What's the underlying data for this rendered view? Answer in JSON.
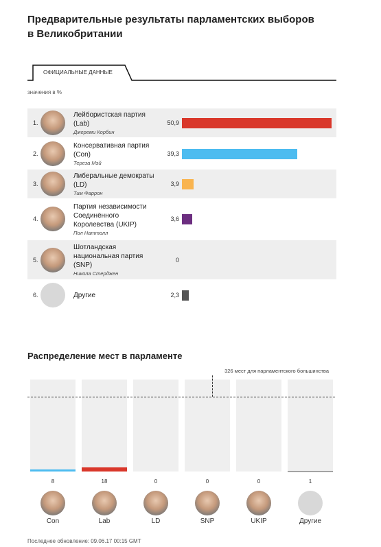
{
  "title": "Предварительные результаты парламентских выборов в Великобритании",
  "tab": "ОФИЦИАЛЬНЫЕ ДАННЫЕ",
  "footer": "Последнее обновление: 09.06.17 00:15 GMT",
  "chart_data": [
    {
      "type": "bar",
      "note": "значения в %",
      "ranks": [
        "1.",
        "2.",
        "3.",
        "4.",
        "5.",
        "6."
      ],
      "categories": [
        "Лейбористская партия (Lab)",
        "Консервативная партия (Con)",
        "Либеральные демократы (LD)",
        "Партия независимости Соединённого Королевства (UKIP)",
        "Шотландская национальная партия (SNP)",
        "Другие"
      ],
      "leaders": [
        "Джереми Корбин",
        "Тереза Мэй",
        "Тим Фаррон",
        "Пол Наттолл",
        "Никола Стерджен",
        null
      ],
      "values": [
        50.9,
        39.3,
        3.9,
        3.6,
        0,
        2.3
      ],
      "value_labels": [
        "50,9",
        "39,3",
        "3,9",
        "3,6",
        "0",
        "2,3"
      ],
      "colors": [
        "#d9372a",
        "#4dbcf0",
        "#f9b44f",
        "#6c2e80",
        "#f2d64a",
        "#555555"
      ]
    },
    {
      "type": "column",
      "title": "Распределение мест в парламенте",
      "annotation": "326 мест для парламентского большинства",
      "majority": 326,
      "categories": [
        "Con",
        "Lab",
        "LD",
        "SNP",
        "UKIP",
        "Другие"
      ],
      "values": [
        8,
        18,
        0,
        0,
        0,
        1
      ],
      "colors": [
        "#4dbcf0",
        "#d9372a",
        "#f9b44f",
        "#f2d64a",
        "#6c2e80",
        "#555555"
      ],
      "ylim": [
        0,
        400
      ]
    }
  ]
}
